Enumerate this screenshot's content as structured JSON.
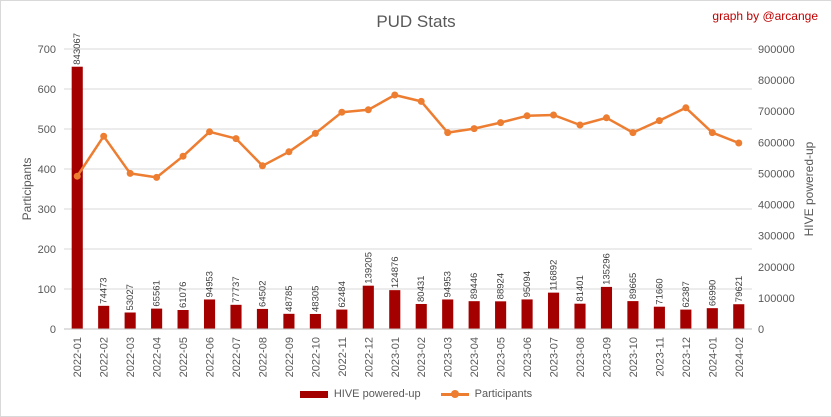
{
  "chart_data": {
    "type": "bar",
    "title": "PUD Stats",
    "credit": "graph by @arcange",
    "categories": [
      "2022-01",
      "2022-02",
      "2022-03",
      "2022-04",
      "2022-05",
      "2022-06",
      "2022-07",
      "2022-08",
      "2022-09",
      "2022-10",
      "2022-11",
      "2022-12",
      "2023-01",
      "2023-02",
      "2023-03",
      "2023-04",
      "2023-05",
      "2023-06",
      "2023-07",
      "2023-08",
      "2023-09",
      "2023-10",
      "2023-11",
      "2023-12",
      "2024-01",
      "2024-02"
    ],
    "series": [
      {
        "name": "HIVE powered-up",
        "type": "bar",
        "axis": "right",
        "color": "#a50000",
        "values": [
          843067,
          74473,
          53027,
          65561,
          61076,
          94953,
          77737,
          64502,
          48785,
          48305,
          62484,
          139205,
          124876,
          80431,
          94953,
          89446,
          88924,
          95094,
          116892,
          81401,
          135296,
          89665,
          71660,
          62387,
          66990,
          79621
        ]
      },
      {
        "name": "Participants",
        "type": "line",
        "axis": "left",
        "color": "#ed7d31",
        "values": [
          382,
          482,
          389,
          379,
          432,
          493,
          476,
          408,
          443,
          489,
          542,
          548,
          585,
          569,
          491,
          501,
          516,
          533,
          535,
          510,
          528,
          491,
          521,
          553,
          491,
          465
        ]
      }
    ],
    "ylabel_left": "Participants",
    "ylabel_right": "HIVE powered-up",
    "ylim_left": [
      0,
      700
    ],
    "ylim_right": [
      0,
      900000
    ],
    "yticks_left": [
      "0",
      "100",
      "200",
      "300",
      "400",
      "500",
      "600",
      "700"
    ],
    "yticks_right": [
      "0",
      "100000",
      "200000",
      "300000",
      "400000",
      "500000",
      "600000",
      "700000",
      "800000",
      "900000"
    ],
    "grid": true,
    "legend_position": "bottom"
  }
}
